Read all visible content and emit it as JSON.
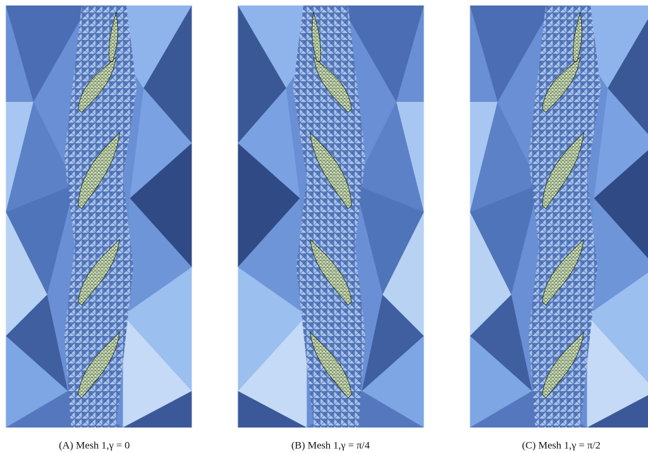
{
  "figure": {
    "panels": [
      {
        "caption": "(A) Mesh 1,γ = 0"
      },
      {
        "caption": "(B) Mesh 1,γ = π/4"
      },
      {
        "caption": "(C) Mesh 1,γ = π/2"
      }
    ]
  }
}
